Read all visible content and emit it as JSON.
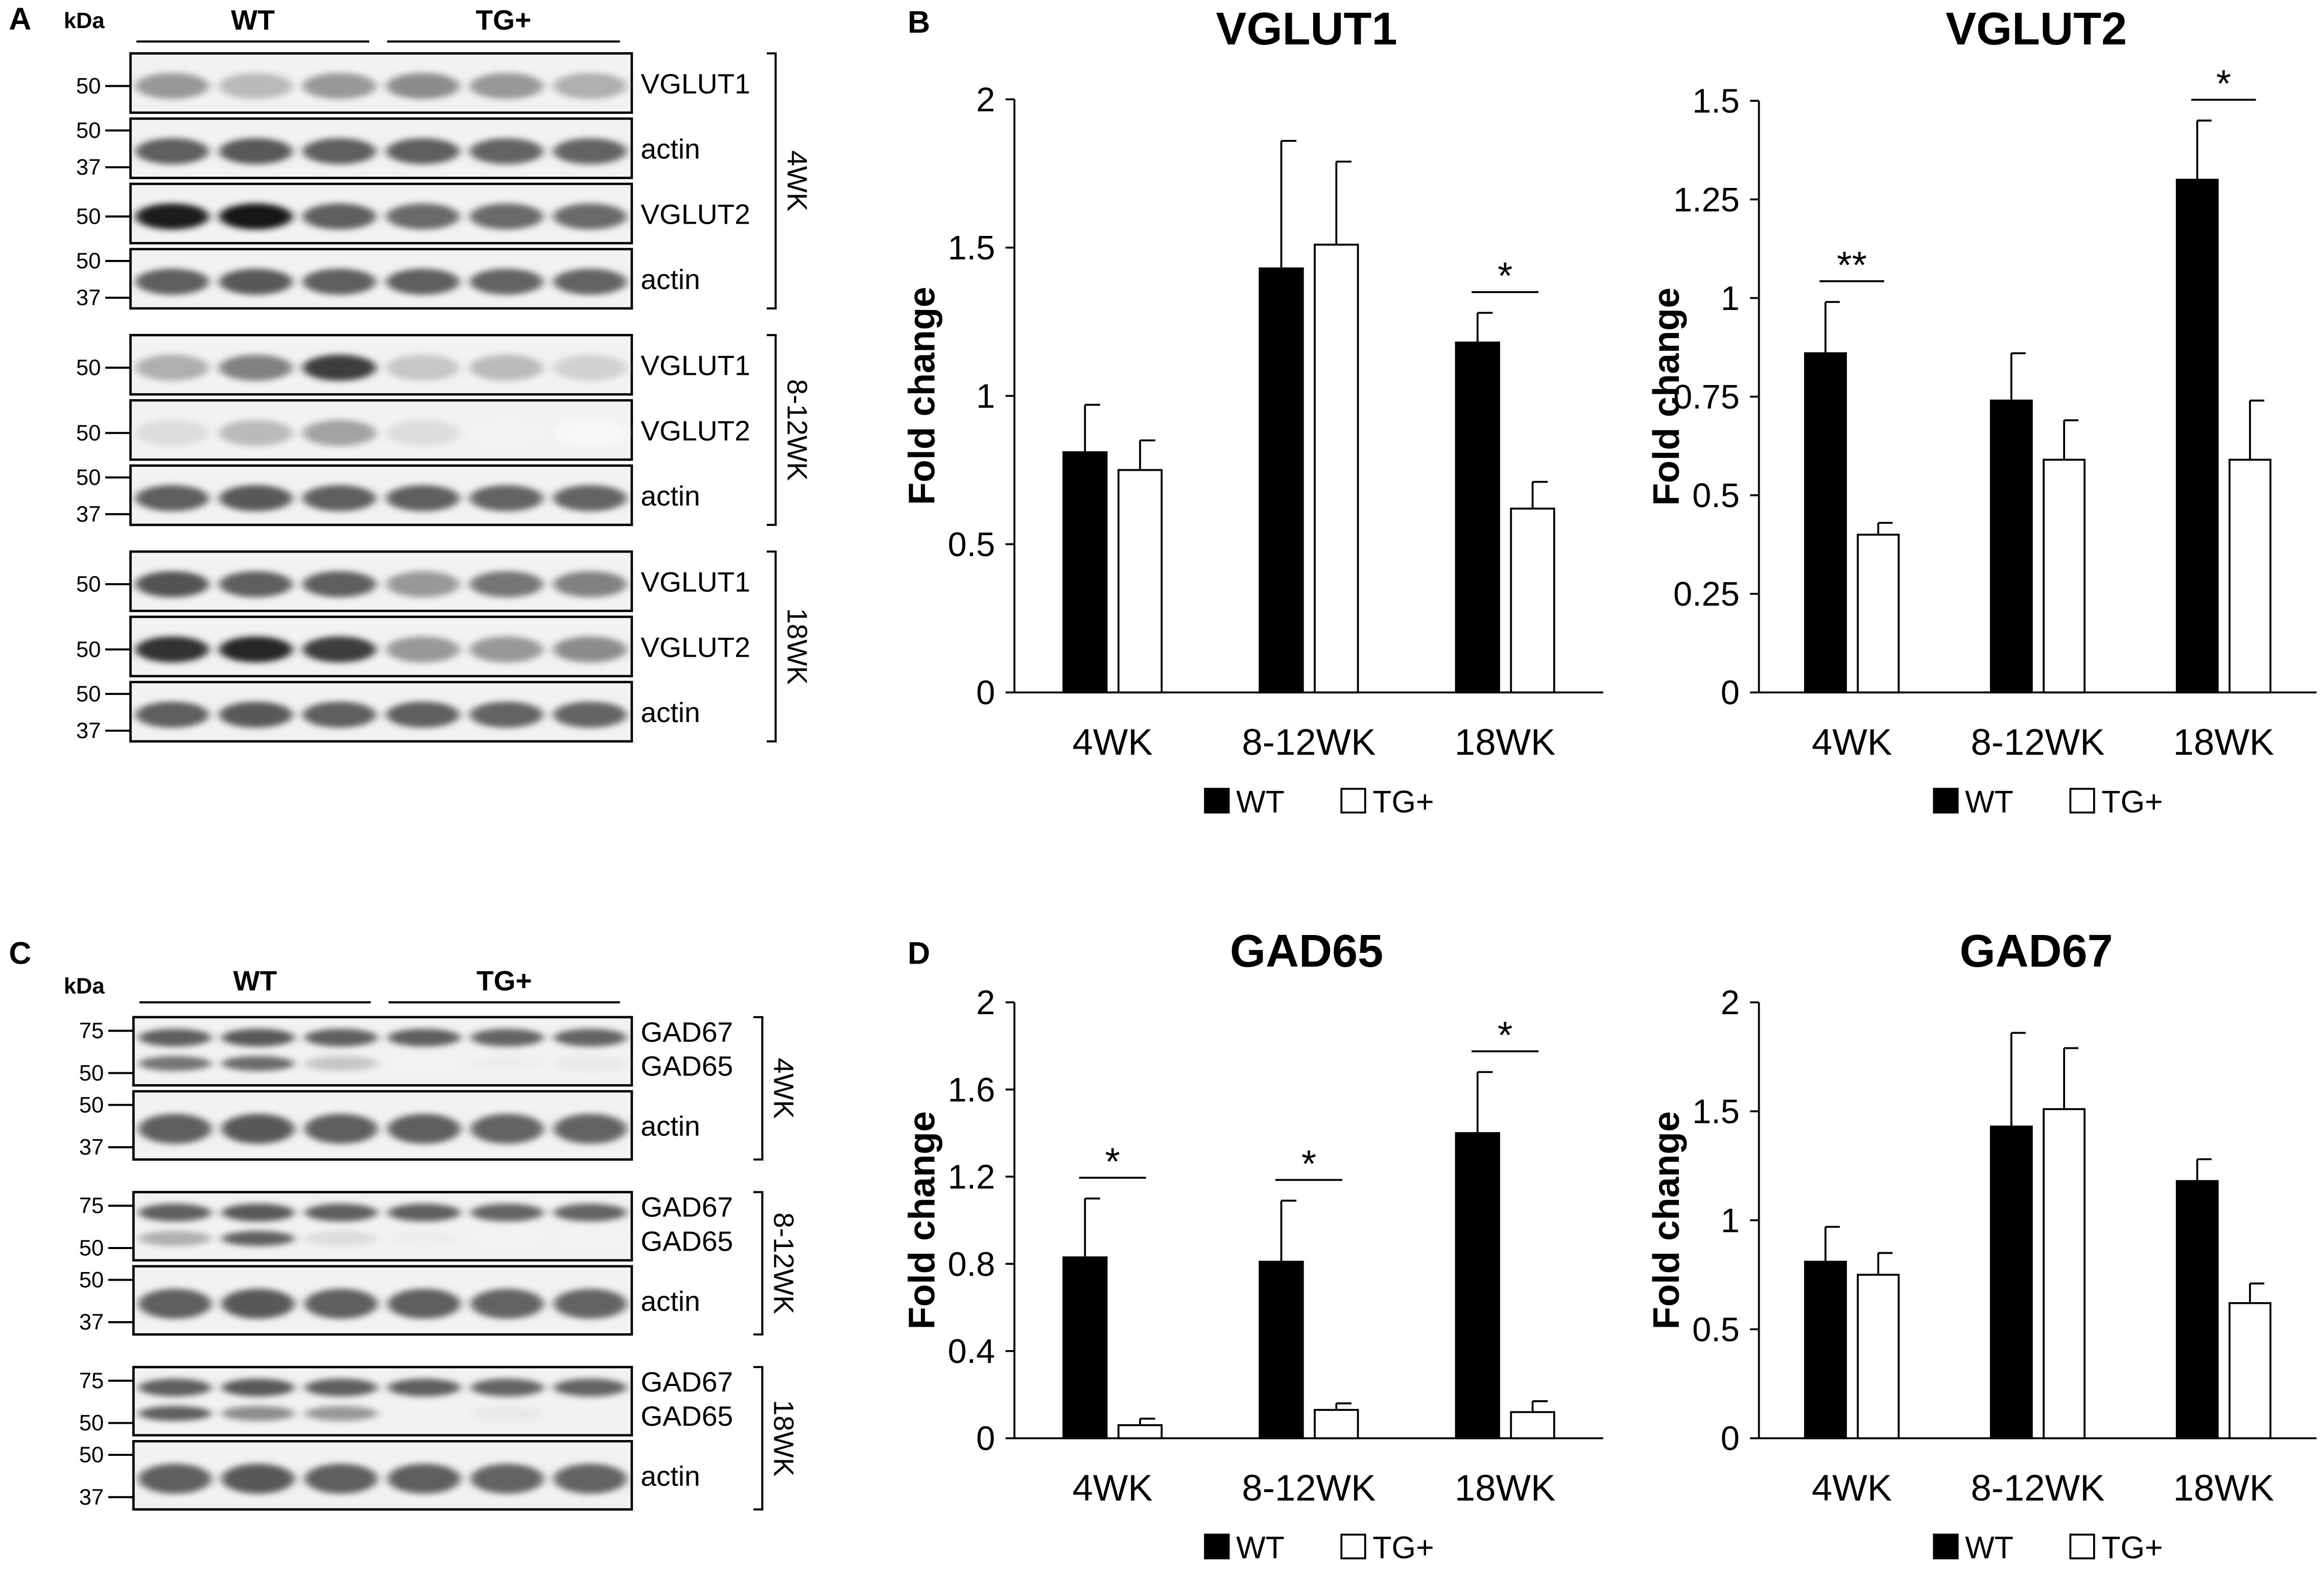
{
  "panels": [
    {
      "id": "A",
      "label": "A"
    },
    {
      "id": "B",
      "label": "B"
    },
    {
      "id": "C",
      "label": "C"
    },
    {
      "id": "D",
      "label": "D"
    }
  ],
  "blot_A": {
    "kda": "kDa",
    "groups": [
      "WT",
      "TG+"
    ],
    "sections": [
      {
        "age": "4WK",
        "strips": [
          {
            "band": "VGLUT1",
            "markers": [
              "50"
            ]
          },
          {
            "band": "actin",
            "markers": [
              "50",
              "37"
            ]
          },
          {
            "band": "VGLUT2",
            "markers": [
              "50"
            ]
          },
          {
            "band": "actin",
            "markers": [
              "50",
              "37"
            ]
          }
        ]
      },
      {
        "age": "8-12WK",
        "strips": [
          {
            "band": "VGLUT1",
            "markers": [
              "50"
            ]
          },
          {
            "band": "VGLUT2",
            "markers": [
              "50"
            ]
          },
          {
            "band": "actin",
            "markers": [
              "50",
              "37"
            ]
          }
        ]
      },
      {
        "age": "18WK",
        "strips": [
          {
            "band": "VGLUT1",
            "markers": [
              "50"
            ]
          },
          {
            "band": "VGLUT2",
            "markers": [
              "50"
            ]
          },
          {
            "band": "actin",
            "markers": [
              "50",
              "37"
            ]
          }
        ]
      }
    ]
  },
  "blot_C": {
    "kda": "kDa",
    "groups": [
      "WT",
      "TG+"
    ],
    "sections": [
      {
        "age": "4WK",
        "strips": [
          {
            "bands": [
              "GAD67",
              "GAD65"
            ],
            "markers": [
              "75",
              "50"
            ]
          },
          {
            "bands": [
              "actin"
            ],
            "markers": [
              "50",
              "37"
            ]
          }
        ]
      },
      {
        "age": "8-12WK",
        "strips": [
          {
            "bands": [
              "GAD67",
              "GAD65"
            ],
            "markers": [
              "75",
              "50"
            ]
          },
          {
            "bands": [
              "actin"
            ],
            "markers": [
              "50",
              "37"
            ]
          }
        ]
      },
      {
        "age": "18WK",
        "strips": [
          {
            "bands": [
              "GAD67",
              "GAD65"
            ],
            "markers": [
              "75",
              "50"
            ]
          },
          {
            "bands": [
              "actin"
            ],
            "markers": [
              "50",
              "37"
            ]
          }
        ]
      }
    ]
  },
  "chart_data": [
    {
      "type": "bar",
      "title": "VGLUT1",
      "ylabel": "Fold change",
      "xlabel": "",
      "categories": [
        "4WK",
        "8-12WK",
        "18WK"
      ],
      "ylim": [
        0,
        2
      ],
      "yticks": [
        "0",
        "0.5",
        "1",
        "1.5",
        "2"
      ],
      "series": [
        {
          "name": "WT",
          "values": [
            0.81,
            1.43,
            1.18
          ],
          "errors": [
            0.16,
            0.43,
            0.1
          ],
          "color": "#000000"
        },
        {
          "name": "TG+",
          "values": [
            0.75,
            1.51,
            0.62
          ],
          "errors": [
            0.1,
            0.28,
            0.09
          ],
          "color": "#ffffff"
        }
      ],
      "significance": [
        {
          "category": "18WK",
          "label": "*"
        }
      ],
      "legend": "bottom",
      "grid": false
    },
    {
      "type": "bar",
      "title": "VGLUT2",
      "ylabel": "Fold change",
      "xlabel": "",
      "categories": [
        "4WK",
        "8-12WK",
        "18WK"
      ],
      "ylim": [
        0,
        1.5
      ],
      "yticks": [
        "0",
        "0.25",
        "0.5",
        "0.75",
        "1",
        "1.25",
        "1.5"
      ],
      "series": [
        {
          "name": "WT",
          "values": [
            0.86,
            0.74,
            1.3
          ],
          "errors": [
            0.13,
            0.12,
            0.15
          ],
          "color": "#000000"
        },
        {
          "name": "TG+",
          "values": [
            0.4,
            0.59,
            0.59
          ],
          "errors": [
            0.03,
            0.1,
            0.15
          ],
          "color": "#ffffff"
        }
      ],
      "significance": [
        {
          "category": "4WK",
          "label": "**"
        },
        {
          "category": "18WK",
          "label": "*"
        }
      ],
      "legend": "bottom",
      "grid": false
    },
    {
      "type": "bar",
      "title": "GAD65",
      "ylabel": "Fold change",
      "xlabel": "",
      "categories": [
        "4WK",
        "8-12WK",
        "18WK"
      ],
      "ylim": [
        0,
        2
      ],
      "yticks": [
        "0",
        "0.4",
        "0.8",
        "1.2",
        "1.6",
        "2"
      ],
      "series": [
        {
          "name": "WT",
          "values": [
            0.83,
            0.81,
            1.4
          ],
          "errors": [
            0.27,
            0.28,
            0.28
          ],
          "color": "#000000"
        },
        {
          "name": "TG+",
          "values": [
            0.06,
            0.13,
            0.12
          ],
          "errors": [
            0.03,
            0.03,
            0.05
          ],
          "color": "#ffffff"
        }
      ],
      "significance": [
        {
          "category": "4WK",
          "label": "*"
        },
        {
          "category": "8-12WK",
          "label": "*"
        },
        {
          "category": "18WK",
          "label": "*"
        }
      ],
      "legend": "bottom",
      "grid": false
    },
    {
      "type": "bar",
      "title": "GAD67",
      "ylabel": "Fold change",
      "xlabel": "",
      "categories": [
        "4WK",
        "8-12WK",
        "18WK"
      ],
      "ylim": [
        0,
        2
      ],
      "yticks": [
        "0",
        "0.5",
        "1",
        "1.5",
        "2"
      ],
      "series": [
        {
          "name": "WT",
          "values": [
            0.81,
            1.43,
            1.18
          ],
          "errors": [
            0.16,
            0.43,
            0.1
          ],
          "color": "#000000"
        },
        {
          "name": "TG+",
          "values": [
            0.75,
            1.51,
            0.62
          ],
          "errors": [
            0.1,
            0.28,
            0.09
          ],
          "color": "#ffffff"
        }
      ],
      "significance": [],
      "legend": "bottom",
      "grid": false
    }
  ]
}
